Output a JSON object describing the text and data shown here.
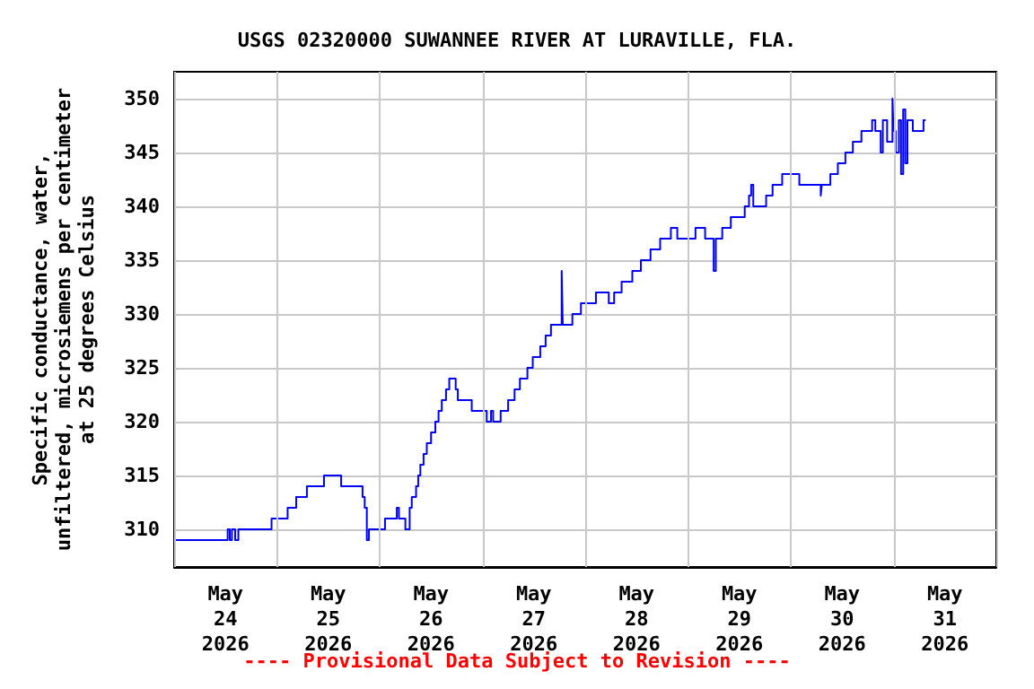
{
  "chart_data": {
    "type": "step",
    "title": "USGS 02320000 SUWANNEE RIVER AT LURAVILLE, FLA.",
    "ylabel": "Specific conductance, water,\nunfiltered, microsiemens per centimeter\nat 25 degrees Celsius",
    "annotations": [
      "---- Provisional Data Subject to Revision ----"
    ],
    "x": [
      "2026-05-24T00:00",
      "2026-05-24T12:30",
      "2026-05-24T13:00",
      "2026-05-24T13:30",
      "2026-05-24T14:15",
      "2026-05-24T15:00",
      "2026-05-24T22:45",
      "2026-05-25T02:30",
      "2026-05-25T04:30",
      "2026-05-25T07:00",
      "2026-05-25T11:00",
      "2026-05-25T15:00",
      "2026-05-25T20:00",
      "2026-05-25T20:30",
      "2026-05-25T21:00",
      "2026-05-25T21:30",
      "2026-05-26T01:15",
      "2026-05-26T04:00",
      "2026-05-26T04:30",
      "2026-05-26T06:00",
      "2026-05-26T07:00",
      "2026-05-26T07:30",
      "2026-05-26T08:30",
      "2026-05-26T09:00",
      "2026-05-26T09:30",
      "2026-05-26T10:15",
      "2026-05-26T11:00",
      "2026-05-26T12:00",
      "2026-05-26T13:00",
      "2026-05-26T13:45",
      "2026-05-26T14:30",
      "2026-05-26T15:30",
      "2026-05-26T16:15",
      "2026-05-26T17:45",
      "2026-05-26T18:15",
      "2026-05-26T21:30",
      "2026-05-27T01:00",
      "2026-05-27T02:00",
      "2026-05-27T02:30",
      "2026-05-27T04:15",
      "2026-05-27T06:00",
      "2026-05-27T07:30",
      "2026-05-27T08:45",
      "2026-05-27T10:30",
      "2026-05-27T11:45",
      "2026-05-27T13:30",
      "2026-05-27T14:45",
      "2026-05-27T16:00",
      "2026-05-27T18:30",
      "2026-05-27T18:45",
      "2026-05-27T21:00",
      "2026-05-27T23:00",
      "2026-05-28T02:30",
      "2026-05-28T05:30",
      "2026-05-28T06:45",
      "2026-05-28T08:30",
      "2026-05-28T11:00",
      "2026-05-28T13:00",
      "2026-05-28T15:15",
      "2026-05-28T17:30",
      "2026-05-28T20:00",
      "2026-05-28T21:30",
      "2026-05-29T01:45",
      "2026-05-29T04:00",
      "2026-05-29T06:00",
      "2026-05-29T06:30",
      "2026-05-29T08:00",
      "2026-05-29T10:00",
      "2026-05-29T13:15",
      "2026-05-29T14:15",
      "2026-05-29T14:45",
      "2026-05-29T15:15",
      "2026-05-29T18:15",
      "2026-05-29T19:45",
      "2026-05-29T22:00",
      "2026-05-30T02:00",
      "2026-05-30T07:00",
      "2026-05-30T07:15",
      "2026-05-30T09:15",
      "2026-05-30T11:00",
      "2026-05-30T12:45",
      "2026-05-30T14:30",
      "2026-05-30T16:30",
      "2026-05-30T19:00",
      "2026-05-30T19:45",
      "2026-05-30T21:00",
      "2026-05-30T21:30",
      "2026-05-30T22:30",
      "2026-05-30T23:45",
      "2026-05-31T00:00",
      "2026-05-31T00:30",
      "2026-05-31T01:15",
      "2026-05-31T01:45",
      "2026-05-31T02:15",
      "2026-05-31T02:45",
      "2026-05-31T03:15",
      "2026-05-31T04:30",
      "2026-05-31T07:00",
      "2026-05-31T07:30"
    ],
    "series": [
      {
        "color": "#0000ff",
        "values": [
          309,
          310,
          309,
          310,
          309,
          310,
          311,
          312,
          313,
          314,
          315,
          314,
          313,
          312,
          309,
          310,
          311,
          312,
          311,
          310,
          312,
          313,
          314,
          315,
          316,
          317,
          318,
          319,
          320,
          321,
          322,
          323,
          324,
          323,
          322,
          321,
          320,
          321,
          320,
          321,
          322,
          323,
          324,
          325,
          326,
          327,
          328,
          329,
          334,
          329,
          330,
          331,
          332,
          331,
          332,
          333,
          334,
          335,
          336,
          337,
          338,
          337,
          338,
          337,
          334,
          337,
          338,
          339,
          340,
          341,
          342,
          340,
          341,
          342,
          343,
          342,
          341,
          342,
          343,
          344,
          345,
          346,
          347,
          348,
          347,
          345,
          348,
          346,
          350,
          347,
          345,
          348,
          343,
          349,
          344,
          348,
          347,
          348,
          348
        ]
      }
    ],
    "xlim": [
      "2026-05-24T00:00",
      "2026-06-01T00:00"
    ],
    "xticks": [
      {
        "value": "2026-05-24T00:00",
        "label": null
      },
      {
        "value": "2026-05-24T12:00",
        "label": "May\n24\n2026"
      },
      {
        "value": "2026-05-25T00:00",
        "label": null
      },
      {
        "value": "2026-05-25T12:00",
        "label": "May\n25\n2026"
      },
      {
        "value": "2026-05-26T00:00",
        "label": null
      },
      {
        "value": "2026-05-26T12:00",
        "label": "May\n26\n2026"
      },
      {
        "value": "2026-05-27T00:00",
        "label": null
      },
      {
        "value": "2026-05-27T12:00",
        "label": "May\n27\n2026"
      },
      {
        "value": "2026-05-28T00:00",
        "label": null
      },
      {
        "value": "2026-05-28T12:00",
        "label": "May\n28\n2026"
      },
      {
        "value": "2026-05-29T00:00",
        "label": null
      },
      {
        "value": "2026-05-29T12:00",
        "label": "May\n29\n2026"
      },
      {
        "value": "2026-05-30T00:00",
        "label": null
      },
      {
        "value": "2026-05-30T12:00",
        "label": "May\n30\n2026"
      },
      {
        "value": "2026-05-31T00:00",
        "label": null
      },
      {
        "value": "2026-05-31T12:00",
        "label": "May\n31\n2026"
      },
      {
        "value": "2026-06-01T00:00",
        "label": null
      }
    ],
    "ylim": [
      306.5,
      352.5
    ],
    "yticks": [
      310,
      315,
      320,
      325,
      330,
      335,
      340,
      345,
      350
    ],
    "grid": true
  }
}
